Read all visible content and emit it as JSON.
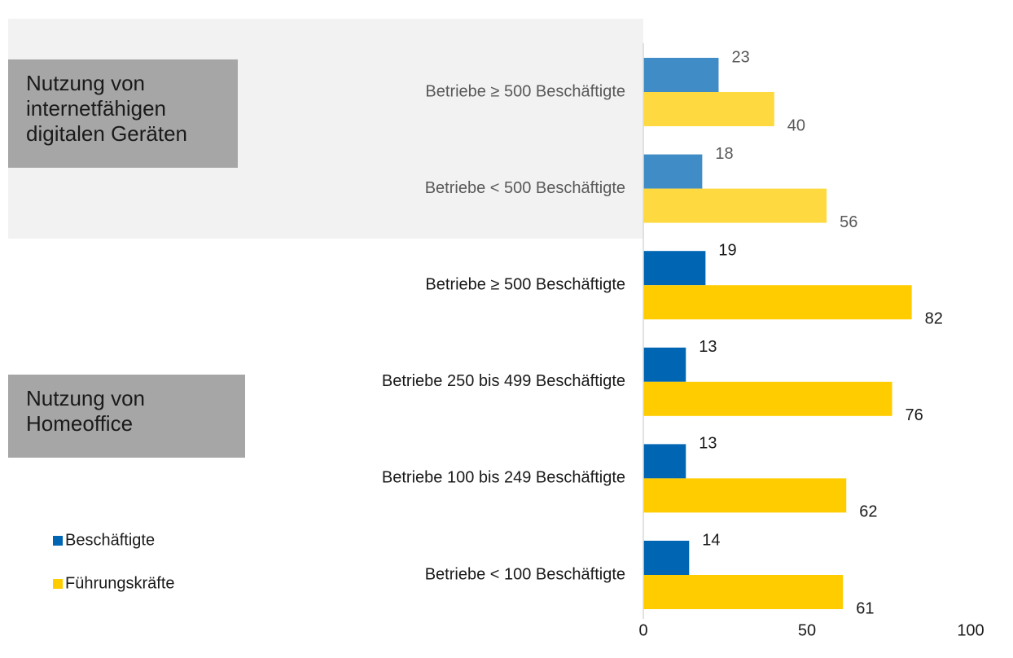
{
  "chart_data": {
    "type": "bar",
    "orientation": "horizontal",
    "annotations": [
      "Nutzung von internetfähigen digitalen Geräten",
      "Nutzung von Homeoffice"
    ],
    "categories": [
      "Betriebe ≥ 500 Beschäftigte",
      "Betriebe < 500 Beschäftigte",
      "Betriebe ≥ 500 Beschäftigte",
      "Betriebe 250 bis 499 Beschäftigte",
      "Betriebe 100 bis 249 Beschäftigte",
      "Betriebe < 100 Beschäftigte"
    ],
    "series": [
      {
        "name": "Beschäftigte",
        "color": "#0066b3",
        "values": [
          23,
          18,
          19,
          13,
          13,
          14
        ]
      },
      {
        "name": "Führungskräfte",
        "color": "#ffcc00",
        "values": [
          40,
          56,
          82,
          76,
          62,
          61
        ]
      }
    ],
    "xlim": [
      0,
      100
    ],
    "xticks": [
      0,
      50,
      100
    ],
    "grid": false,
    "legend": "bottom-left"
  }
}
